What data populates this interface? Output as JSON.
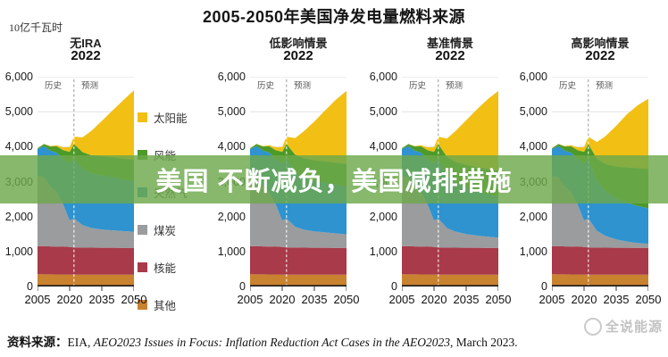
{
  "title": "2005-2050年美国净发电量燃料来源",
  "unit_label": "10亿千瓦时",
  "axis": {
    "history_label": "历史",
    "forecast_label": "预测",
    "y_ticks": [
      "6,000",
      "5,000",
      "4,000",
      "3,000",
      "2,000",
      "1,000",
      "0"
    ],
    "x_ticks": [
      "2005",
      "2020",
      "2035",
      "2050"
    ]
  },
  "legend": {
    "items": [
      {
        "label": "太阳能",
        "color": "#F2C014"
      },
      {
        "label": "风能",
        "color": "#4D9A28"
      },
      {
        "label": "天然气",
        "color": "#2E93CF"
      },
      {
        "label": "煤炭",
        "color": "#9A9C9E"
      },
      {
        "label": "核能",
        "color": "#A83A49"
      },
      {
        "label": "其他",
        "color": "#C9822F"
      }
    ]
  },
  "banner": {
    "text": "美国 不断减负，美国减排措施",
    "background": "rgba(109,168,76,0.82)",
    "text_color": "#ffffff"
  },
  "source": {
    "prefix": "资料来源：",
    "text_normal": "EIA, ",
    "text_italic": "AEO2023 Issues in Focus: Inflation Reduction Act Cases in the AEO2023",
    "text_suffix": ", March 2023."
  },
  "watermark": "全说能源",
  "chart_data": {
    "type": "area",
    "stacked": true,
    "x": [
      2005,
      2008,
      2011,
      2014,
      2017,
      2020,
      2022,
      2026,
      2030,
      2035,
      2040,
      2045,
      2050
    ],
    "ylim": [
      0,
      6000
    ],
    "x_tick_years": [
      2005,
      2020,
      2035,
      2050
    ],
    "divider_year": 2022,
    "grid": true,
    "charts": [
      {
        "title": "无IRA",
        "subtitle": "2022",
        "series": [
          {
            "name": "其他",
            "color": "#C9822F",
            "values": [
              350,
              348,
              346,
              344,
              342,
              340,
              340,
              338,
              338,
              337,
              337,
              336,
              336
            ]
          },
          {
            "name": "核能",
            "color": "#A83A49",
            "values": [
              802,
              806,
              800,
              798,
              804,
              790,
              778,
              775,
              772,
              770,
              770,
              768,
              766
            ]
          },
          {
            "name": "煤炭",
            "color": "#9A9C9E",
            "values": [
              2010,
              1975,
              1720,
              1555,
              1200,
              760,
              830,
              645,
              565,
              525,
              500,
              480,
              465
            ]
          },
          {
            "name": "天然气",
            "color": "#2E93CF",
            "values": [
              770,
              890,
              1020,
              1130,
              1300,
              1625,
              1700,
              1610,
              1565,
              1545,
              1515,
              1480,
              1455
            ]
          },
          {
            "name": "风能",
            "color": "#4D9A28",
            "values": [
              18,
              55,
              120,
              182,
              256,
              338,
              432,
              478,
              515,
              548,
              572,
              594,
              612
            ]
          },
          {
            "name": "太阳能",
            "color": "#F2C014",
            "values": [
              5,
              6,
              12,
              32,
              78,
              132,
              206,
              420,
              690,
              1010,
              1340,
              1670,
              1980
            ]
          }
        ]
      },
      {
        "title": "低影响情景",
        "subtitle": "2022",
        "series": [
          {
            "name": "其他",
            "color": "#C9822F",
            "values": [
              350,
              348,
              346,
              344,
              342,
              340,
              340,
              338,
              338,
              337,
              337,
              336,
              336
            ]
          },
          {
            "name": "核能",
            "color": "#A83A49",
            "values": [
              802,
              806,
              800,
              798,
              804,
              790,
              778,
              775,
              772,
              770,
              770,
              768,
              766
            ]
          },
          {
            "name": "煤炭",
            "color": "#9A9C9E",
            "values": [
              2010,
              1975,
              1720,
              1555,
              1200,
              760,
              830,
              600,
              520,
              470,
              440,
              415,
              390
            ]
          },
          {
            "name": "天然气",
            "color": "#2E93CF",
            "values": [
              770,
              890,
              1020,
              1130,
              1300,
              1625,
              1700,
              1570,
              1500,
              1460,
              1425,
              1395,
              1365
            ]
          },
          {
            "name": "风能",
            "color": "#4D9A28",
            "values": [
              18,
              55,
              120,
              182,
              256,
              338,
              432,
              492,
              538,
              575,
              605,
              628,
              648
            ]
          },
          {
            "name": "太阳能",
            "color": "#F2C014",
            "values": [
              5,
              6,
              12,
              32,
              78,
              132,
              206,
              470,
              770,
              1110,
              1460,
              1800,
              2090
            ]
          }
        ]
      },
      {
        "title": "基准情景",
        "subtitle": "2022",
        "series": [
          {
            "name": "其他",
            "color": "#C9822F",
            "values": [
              350,
              348,
              346,
              344,
              342,
              340,
              340,
              338,
              338,
              337,
              337,
              336,
              336
            ]
          },
          {
            "name": "核能",
            "color": "#A83A49",
            "values": [
              802,
              806,
              800,
              798,
              804,
              790,
              778,
              775,
              772,
              770,
              770,
              768,
              766
            ]
          },
          {
            "name": "煤炭",
            "color": "#9A9C9E",
            "values": [
              2010,
              1975,
              1720,
              1555,
              1200,
              760,
              830,
              560,
              460,
              395,
              350,
              320,
              295
            ]
          },
          {
            "name": "天然气",
            "color": "#2E93CF",
            "values": [
              770,
              890,
              1020,
              1130,
              1300,
              1625,
              1700,
              1520,
              1410,
              1330,
              1270,
              1220,
              1175
            ]
          },
          {
            "name": "风能",
            "color": "#4D9A28",
            "values": [
              18,
              55,
              120,
              182,
              256,
              338,
              432,
              520,
              585,
              645,
              690,
              720,
              742
            ]
          },
          {
            "name": "太阳能",
            "color": "#F2C014",
            "values": [
              5,
              6,
              12,
              32,
              78,
              132,
              206,
              520,
              880,
              1280,
              1650,
              1990,
              2280
            ]
          }
        ]
      },
      {
        "title": "高影响情景",
        "subtitle": "2022",
        "series": [
          {
            "name": "其他",
            "color": "#C9822F",
            "values": [
              350,
              348,
              346,
              344,
              342,
              340,
              340,
              338,
              338,
              337,
              337,
              336,
              336
            ]
          },
          {
            "name": "核能",
            "color": "#A83A49",
            "values": [
              802,
              806,
              800,
              798,
              804,
              790,
              778,
              775,
              772,
              770,
              770,
              768,
              766
            ]
          },
          {
            "name": "煤炭",
            "color": "#9A9C9E",
            "values": [
              2010,
              1975,
              1720,
              1555,
              1200,
              760,
              830,
              480,
              340,
              240,
              180,
              140,
              115
            ]
          },
          {
            "name": "天然气",
            "color": "#2E93CF",
            "values": [
              770,
              890,
              1020,
              1130,
              1300,
              1625,
              1700,
              1450,
              1290,
              1180,
              1110,
              1060,
              1020
            ]
          },
          {
            "name": "风能",
            "color": "#4D9A28",
            "values": [
              18,
              55,
              120,
              182,
              256,
              338,
              432,
              610,
              760,
              900,
              1010,
              1080,
              1125
            ]
          },
          {
            "name": "太阳能",
            "color": "#F2C014",
            "values": [
              5,
              6,
              12,
              32,
              78,
              132,
              206,
              480,
              800,
              1170,
              1520,
              1800,
              2010
            ]
          }
        ]
      }
    ]
  }
}
